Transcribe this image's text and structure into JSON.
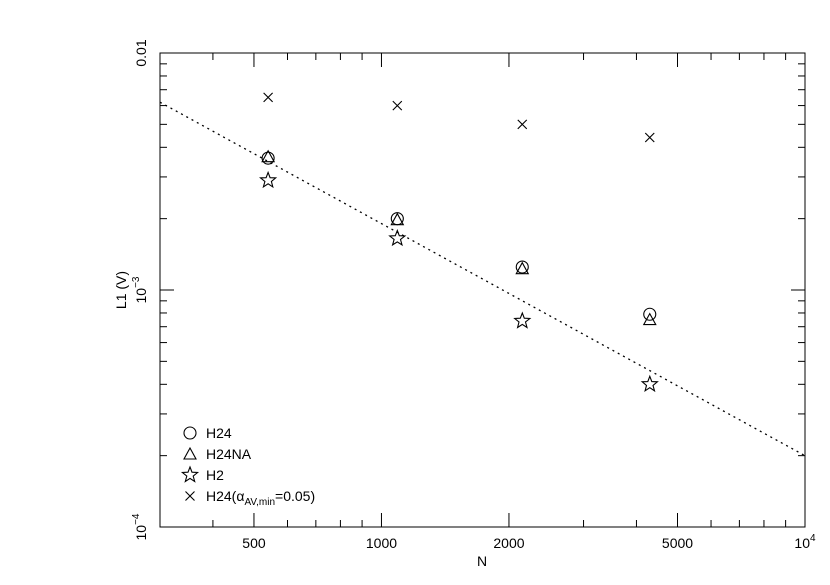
{
  "chart_data": {
    "type": "scatter",
    "xlabel": "N",
    "ylabel": "L1 (V)",
    "xscale": "log",
    "yscale": "log",
    "xlim": [
      300,
      10000
    ],
    "ylim": [
      0.0001,
      0.01
    ],
    "x_ticks": [
      {
        "value": 500,
        "label": "500"
      },
      {
        "value": 1000,
        "label": "1000"
      },
      {
        "value": 2000,
        "label": "2000"
      },
      {
        "value": 5000,
        "label": "5000"
      },
      {
        "value": 10000,
        "label": "10",
        "sup": "4"
      }
    ],
    "y_ticks": [
      {
        "value": 0.0001,
        "label": "10",
        "sup": "−4"
      },
      {
        "value": 0.001,
        "label": "10",
        "sup": "−3"
      },
      {
        "value": 0.01,
        "label": "0.01"
      }
    ],
    "series": [
      {
        "name": "H24",
        "marker": "circle",
        "x": [
          540,
          1090,
          2150,
          4300
        ],
        "y": [
          0.0036,
          0.002,
          0.00125,
          0.00079
        ]
      },
      {
        "name": "H24NA",
        "marker": "triangle",
        "x": [
          540,
          1090,
          2150,
          4300
        ],
        "y": [
          0.00365,
          0.00198,
          0.00123,
          0.00075
        ]
      },
      {
        "name": "H2",
        "marker": "star",
        "x": [
          540,
          1090,
          2150,
          4300
        ],
        "y": [
          0.0029,
          0.00165,
          0.00074,
          0.0004
        ]
      },
      {
        "name": "H24(",
        "name_greek": "α",
        "name_sub": "AV,min",
        "name_tail": "=0.05)",
        "marker": "cross",
        "x": [
          540,
          1090,
          2150,
          4300
        ],
        "y": [
          0.0065,
          0.006,
          0.005,
          0.0044
        ]
      }
    ],
    "fit_line": {
      "style": "dotted",
      "x": [
        300,
        10000
      ],
      "y": [
        0.0062,
        0.0002
      ]
    },
    "legend": {
      "placement": "bottom-left"
    },
    "grid": false
  }
}
